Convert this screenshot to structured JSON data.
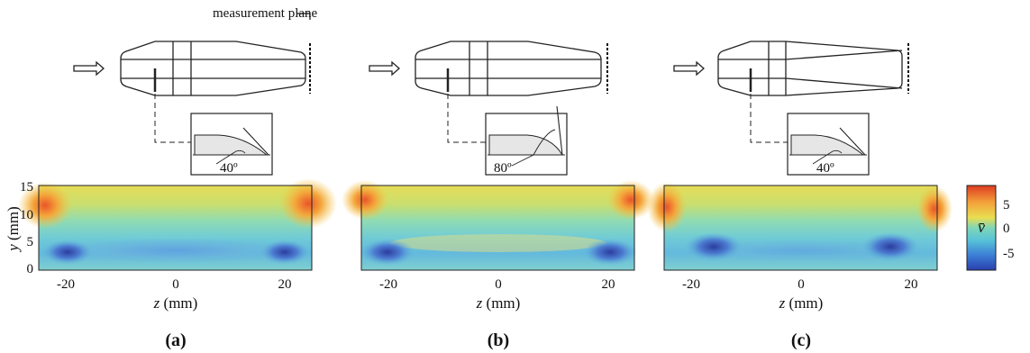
{
  "figure": {
    "measurement_label": "measurement plane",
    "colorbar": {
      "symbol": "v̄",
      "ticks": [
        "5",
        "0",
        "-5"
      ],
      "colors": [
        "#2a3fae",
        "#3d7fd6",
        "#56c2d8",
        "#7fd6b8",
        "#e9de52",
        "#f3a23a",
        "#dd3b22"
      ]
    }
  },
  "panels": [
    {
      "id": "a",
      "caption": "(a)",
      "angle_label": "40º",
      "xlabel_var": "z",
      "xlabel_unit": "(mm)",
      "ylabel_var": "y",
      "ylabel_unit": "(mm)",
      "xticks": [
        "-20",
        "0",
        "20"
      ],
      "yticks": [
        "15",
        "10",
        "5",
        "0"
      ]
    },
    {
      "id": "b",
      "caption": "(b)",
      "angle_label": "80º",
      "xlabel_var": "z",
      "xlabel_unit": "(mm)",
      "xticks": [
        "-20",
        "0",
        "20"
      ]
    },
    {
      "id": "c",
      "caption": "(c)",
      "angle_label": "40º",
      "xlabel_var": "z",
      "xlabel_unit": "(mm)",
      "xticks": [
        "-20",
        "0",
        "20"
      ]
    }
  ]
}
